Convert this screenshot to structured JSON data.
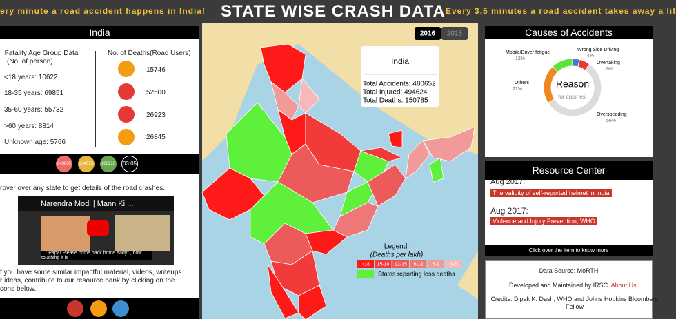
{
  "header": {
    "title": "STATE WISE CRASH DATA",
    "ticker_left": "ery minute a road accident happens in India!",
    "ticker_right": "Every 3.5 minutes a road accident takes away a lif"
  },
  "india_panel": {
    "title": "India",
    "age_heading": "Fatality Age Group Data",
    "age_sub": "(No. of person)",
    "age_groups": [
      "<18 years: 10622",
      "18-35 years: 69851",
      "35-60 years: 55732",
      ">60 years: 8814",
      "Unknown age: 5766"
    ],
    "deaths_heading": "No. of Deaths(Road Users)",
    "deaths": [
      15746,
      52500,
      26923,
      26845
    ],
    "badges": [
      849805,
      934055,
      106216
    ],
    "timer": "03:05"
  },
  "info": {
    "hover_hint": "rover over any state to get details of the road crashes.",
    "video_title": "Narendra Modi | Mann Ki ...",
    "video_caption": "...\" Papa! Please come back home early\" , how touching it is",
    "contribute": [
      "f you have some similar impactful material, videos, writeups",
      "r ideas, contribute to our resource bank by clicking on the",
      "cons below."
    ]
  },
  "map": {
    "years": [
      "2016",
      "2015"
    ],
    "tooltip": {
      "title": "India",
      "lines": [
        "Total Accidents: 480652",
        "Total Injured: 494624",
        "Total Deaths: 150785"
      ]
    },
    "legend": {
      "title": "Legend:",
      "subtitle": "(Deaths per lakh)",
      "bins": [
        ">18",
        "15-18",
        "12-15",
        "9-12",
        "6-9",
        "0-6"
      ],
      "colors": [
        "#ff1a1a",
        "#f23a3a",
        "#ec5a5a",
        "#ee7878",
        "#f29a9a",
        "#f6b8b8"
      ],
      "low_label": "States reporting less deaths",
      "low_color": "#5ef03a"
    }
  },
  "causes": {
    "title": "Causes of Accidents",
    "center": "Reason",
    "center_sub": "for crashes.",
    "names": [
      "Wrong Side Driving",
      "Overtaking",
      "Overspeeding",
      "Others",
      "Mobile/Driver fatigue"
    ],
    "values": [
      4,
      6,
      56,
      22,
      12
    ],
    "value_labels": [
      "4%",
      "6%",
      "56%",
      "22%",
      "12%"
    ],
    "colors": [
      "#3a7dd8",
      "#e53935",
      "#dcdcdc",
      "#f0871f",
      "#5ee33a"
    ]
  },
  "resources": {
    "title": "Resource Center",
    "items": [
      {
        "date": "Aug 2017:",
        "link": "The validity of self-reported helmet in India"
      },
      {
        "date": "Aug 2017:",
        "link": "Violence and Injury Prevention, WHO"
      }
    ],
    "hint": "Click over the item to know more"
  },
  "footer": {
    "source": "Data Source: MoRTH",
    "developed": "Developed and Maintained by IRSC.",
    "about": "About Us",
    "credits": "Credits: Dipak K. Dash, WHO and Johns Hopkins Bloomberg Fellow"
  }
}
